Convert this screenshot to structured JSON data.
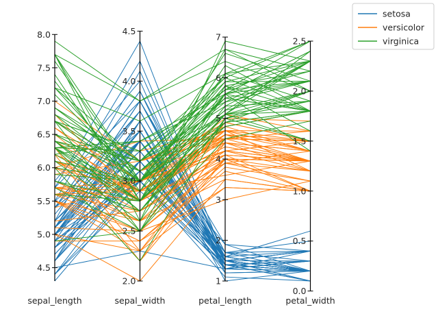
{
  "chart_data": {
    "type": "line",
    "subtype": "parallel-coordinates",
    "title": "",
    "axes": [
      {
        "name": "sepal_length",
        "range": [
          4.3,
          7.9
        ],
        "ticks": [
          "4.5",
          "5.0",
          "5.5",
          "6.0",
          "6.5",
          "7.0",
          "7.5",
          "8.0"
        ],
        "tick_values": [
          4.5,
          5.0,
          5.5,
          6.0,
          6.5,
          7.0,
          7.5,
          8.0
        ]
      },
      {
        "name": "sepal_width",
        "range": [
          2.0,
          4.4
        ],
        "ticks": [
          "2.0",
          "2.5",
          "3.0",
          "3.5",
          "4.0",
          "4.5"
        ],
        "tick_values": [
          2.0,
          2.5,
          3.0,
          3.5,
          4.0,
          4.5
        ]
      },
      {
        "name": "petal_length",
        "range": [
          1.0,
          6.9
        ],
        "ticks": [
          "1",
          "2",
          "3",
          "4",
          "5",
          "6",
          "7"
        ],
        "tick_values": [
          1,
          2,
          3,
          4,
          5,
          6,
          7
        ]
      },
      {
        "name": "petal_width",
        "range": [
          0.1,
          2.5
        ],
        "ticks": [
          "0.0",
          "0.5",
          "1.0",
          "1.5",
          "2.0",
          "2.5"
        ],
        "tick_values": [
          0.0,
          0.5,
          1.0,
          1.5,
          2.0,
          2.5
        ]
      }
    ],
    "legend": {
      "placement": "top-right, outside"
    },
    "grid": false,
    "colors": {
      "setosa": "#1f77b4",
      "versicolor": "#ff7f0e",
      "virginica": "#2ca02c",
      "axis": "#000000"
    },
    "series": [
      {
        "name": "setosa",
        "color": "#1f77b4",
        "values": [
          [
            5.1,
            3.5,
            1.4,
            0.2
          ],
          [
            4.9,
            3.0,
            1.4,
            0.2
          ],
          [
            4.7,
            3.2,
            1.3,
            0.2
          ],
          [
            4.6,
            3.1,
            1.5,
            0.2
          ],
          [
            5.0,
            3.6,
            1.4,
            0.2
          ],
          [
            5.4,
            3.9,
            1.7,
            0.4
          ],
          [
            4.6,
            3.4,
            1.4,
            0.3
          ],
          [
            5.0,
            3.4,
            1.5,
            0.2
          ],
          [
            4.4,
            2.9,
            1.4,
            0.2
          ],
          [
            4.9,
            3.1,
            1.5,
            0.1
          ],
          [
            5.4,
            3.7,
            1.5,
            0.2
          ],
          [
            4.8,
            3.4,
            1.6,
            0.2
          ],
          [
            4.8,
            3.0,
            1.4,
            0.1
          ],
          [
            4.3,
            3.0,
            1.1,
            0.1
          ],
          [
            5.8,
            4.0,
            1.2,
            0.2
          ],
          [
            5.7,
            4.4,
            1.5,
            0.4
          ],
          [
            5.4,
            3.9,
            1.3,
            0.4
          ],
          [
            5.1,
            3.5,
            1.4,
            0.3
          ],
          [
            5.7,
            3.8,
            1.7,
            0.3
          ],
          [
            5.1,
            3.8,
            1.5,
            0.3
          ],
          [
            5.4,
            3.4,
            1.7,
            0.2
          ],
          [
            5.1,
            3.7,
            1.5,
            0.4
          ],
          [
            4.6,
            3.6,
            1.0,
            0.2
          ],
          [
            5.1,
            3.3,
            1.7,
            0.5
          ],
          [
            4.8,
            3.4,
            1.9,
            0.2
          ],
          [
            5.0,
            3.0,
            1.6,
            0.2
          ],
          [
            5.0,
            3.4,
            1.6,
            0.4
          ],
          [
            5.2,
            3.5,
            1.5,
            0.2
          ],
          [
            5.2,
            3.4,
            1.4,
            0.2
          ],
          [
            4.7,
            3.2,
            1.6,
            0.2
          ],
          [
            4.8,
            3.1,
            1.6,
            0.2
          ],
          [
            5.4,
            3.4,
            1.5,
            0.4
          ],
          [
            5.2,
            4.1,
            1.5,
            0.1
          ],
          [
            5.5,
            4.2,
            1.4,
            0.2
          ],
          [
            4.9,
            3.1,
            1.5,
            0.2
          ],
          [
            5.0,
            3.2,
            1.2,
            0.2
          ],
          [
            5.5,
            3.5,
            1.3,
            0.2
          ],
          [
            4.9,
            3.6,
            1.4,
            0.1
          ],
          [
            4.4,
            3.0,
            1.3,
            0.2
          ],
          [
            5.1,
            3.4,
            1.5,
            0.2
          ],
          [
            5.0,
            3.5,
            1.3,
            0.3
          ],
          [
            4.5,
            2.3,
            1.3,
            0.3
          ],
          [
            4.4,
            3.2,
            1.3,
            0.2
          ],
          [
            5.0,
            3.5,
            1.6,
            0.6
          ],
          [
            5.1,
            3.8,
            1.9,
            0.4
          ],
          [
            4.8,
            3.0,
            1.4,
            0.3
          ],
          [
            5.1,
            3.8,
            1.6,
            0.2
          ],
          [
            4.6,
            3.2,
            1.4,
            0.2
          ],
          [
            5.3,
            3.7,
            1.5,
            0.2
          ],
          [
            5.0,
            3.3,
            1.4,
            0.2
          ]
        ]
      },
      {
        "name": "versicolor",
        "color": "#ff7f0e",
        "values": [
          [
            7.0,
            3.2,
            4.7,
            1.4
          ],
          [
            6.4,
            3.2,
            4.5,
            1.5
          ],
          [
            6.9,
            3.1,
            4.9,
            1.5
          ],
          [
            5.5,
            2.3,
            4.0,
            1.3
          ],
          [
            6.5,
            2.8,
            4.6,
            1.5
          ],
          [
            5.7,
            2.8,
            4.5,
            1.3
          ],
          [
            6.3,
            3.3,
            4.7,
            1.6
          ],
          [
            4.9,
            2.4,
            3.3,
            1.0
          ],
          [
            6.6,
            2.9,
            4.6,
            1.3
          ],
          [
            5.2,
            2.7,
            3.9,
            1.4
          ],
          [
            5.0,
            2.0,
            3.5,
            1.0
          ],
          [
            5.9,
            3.0,
            4.2,
            1.5
          ],
          [
            6.0,
            2.2,
            4.0,
            1.0
          ],
          [
            6.1,
            2.9,
            4.7,
            1.4
          ],
          [
            5.6,
            2.9,
            3.6,
            1.3
          ],
          [
            6.7,
            3.1,
            4.4,
            1.4
          ],
          [
            5.6,
            3.0,
            4.5,
            1.5
          ],
          [
            5.8,
            2.7,
            4.1,
            1.0
          ],
          [
            6.2,
            2.2,
            4.5,
            1.5
          ],
          [
            5.6,
            2.5,
            3.9,
            1.1
          ],
          [
            5.9,
            3.2,
            4.8,
            1.8
          ],
          [
            6.1,
            2.8,
            4.0,
            1.3
          ],
          [
            6.3,
            2.5,
            4.9,
            1.5
          ],
          [
            6.1,
            2.8,
            4.7,
            1.2
          ],
          [
            6.4,
            2.9,
            4.3,
            1.3
          ],
          [
            6.6,
            3.0,
            4.4,
            1.4
          ],
          [
            6.8,
            2.8,
            4.8,
            1.4
          ],
          [
            6.7,
            3.0,
            5.0,
            1.7
          ],
          [
            6.0,
            2.9,
            4.5,
            1.5
          ],
          [
            5.7,
            2.6,
            3.5,
            1.0
          ],
          [
            5.5,
            2.4,
            3.8,
            1.1
          ],
          [
            5.5,
            2.4,
            3.7,
            1.0
          ],
          [
            5.8,
            2.7,
            3.9,
            1.2
          ],
          [
            6.0,
            2.7,
            5.1,
            1.6
          ],
          [
            5.4,
            3.0,
            4.5,
            1.5
          ],
          [
            6.0,
            3.4,
            4.5,
            1.6
          ],
          [
            6.7,
            3.1,
            4.7,
            1.5
          ],
          [
            6.3,
            2.3,
            4.4,
            1.3
          ],
          [
            5.6,
            3.0,
            4.1,
            1.3
          ],
          [
            5.5,
            2.5,
            4.0,
            1.3
          ],
          [
            5.5,
            2.6,
            4.4,
            1.2
          ],
          [
            6.1,
            3.0,
            4.6,
            1.4
          ],
          [
            5.8,
            2.6,
            4.0,
            1.2
          ],
          [
            5.0,
            2.3,
            3.3,
            1.0
          ],
          [
            5.6,
            2.7,
            4.2,
            1.3
          ],
          [
            5.7,
            3.0,
            4.2,
            1.2
          ],
          [
            5.7,
            2.9,
            4.2,
            1.3
          ],
          [
            6.2,
            2.9,
            4.3,
            1.3
          ],
          [
            5.1,
            2.5,
            3.0,
            1.1
          ],
          [
            5.7,
            2.8,
            4.1,
            1.3
          ]
        ]
      },
      {
        "name": "virginica",
        "color": "#2ca02c",
        "values": [
          [
            6.3,
            3.3,
            6.0,
            2.5
          ],
          [
            5.8,
            2.7,
            5.1,
            1.9
          ],
          [
            7.1,
            3.0,
            5.9,
            2.1
          ],
          [
            6.3,
            2.9,
            5.6,
            1.8
          ],
          [
            6.5,
            3.0,
            5.8,
            2.2
          ],
          [
            7.6,
            3.0,
            6.6,
            2.1
          ],
          [
            4.9,
            2.5,
            4.5,
            1.7
          ],
          [
            7.3,
            2.9,
            6.3,
            1.8
          ],
          [
            6.7,
            2.5,
            5.8,
            1.8
          ],
          [
            7.2,
            3.6,
            6.1,
            2.5
          ],
          [
            6.5,
            3.2,
            5.1,
            2.0
          ],
          [
            6.4,
            2.7,
            5.3,
            1.9
          ],
          [
            6.8,
            3.0,
            5.5,
            2.1
          ],
          [
            5.7,
            2.5,
            5.0,
            2.0
          ],
          [
            5.8,
            2.8,
            5.1,
            2.4
          ],
          [
            6.4,
            3.2,
            5.3,
            2.3
          ],
          [
            6.5,
            3.0,
            5.5,
            1.8
          ],
          [
            7.7,
            3.8,
            6.7,
            2.2
          ],
          [
            7.7,
            2.6,
            6.9,
            2.3
          ],
          [
            6.0,
            2.2,
            5.0,
            1.5
          ],
          [
            6.9,
            3.2,
            5.7,
            2.3
          ],
          [
            5.6,
            2.8,
            4.9,
            2.0
          ],
          [
            7.7,
            2.8,
            6.7,
            2.0
          ],
          [
            6.3,
            2.7,
            4.9,
            1.8
          ],
          [
            6.7,
            3.3,
            5.7,
            2.1
          ],
          [
            7.2,
            3.2,
            6.0,
            1.8
          ],
          [
            6.2,
            2.8,
            4.8,
            1.8
          ],
          [
            6.1,
            3.0,
            4.9,
            1.8
          ],
          [
            6.4,
            2.8,
            5.6,
            2.1
          ],
          [
            7.2,
            3.0,
            5.8,
            1.6
          ],
          [
            7.4,
            2.8,
            6.1,
            1.9
          ],
          [
            7.9,
            3.8,
            6.4,
            2.0
          ],
          [
            6.4,
            2.8,
            5.6,
            2.2
          ],
          [
            6.3,
            2.8,
            5.1,
            1.5
          ],
          [
            6.1,
            2.6,
            5.6,
            1.4
          ],
          [
            7.7,
            3.0,
            6.1,
            2.3
          ],
          [
            6.3,
            3.4,
            5.6,
            2.4
          ],
          [
            6.4,
            3.1,
            5.5,
            1.8
          ],
          [
            6.0,
            3.0,
            4.8,
            1.8
          ],
          [
            6.9,
            3.1,
            5.4,
            2.1
          ],
          [
            6.7,
            3.1,
            5.6,
            2.4
          ],
          [
            6.9,
            3.1,
            5.1,
            2.3
          ],
          [
            5.8,
            2.7,
            5.1,
            1.9
          ],
          [
            6.8,
            3.2,
            5.9,
            2.3
          ],
          [
            6.7,
            3.3,
            5.7,
            2.5
          ],
          [
            6.7,
            3.0,
            5.2,
            2.3
          ],
          [
            6.3,
            2.5,
            5.0,
            1.9
          ],
          [
            6.5,
            3.0,
            5.2,
            2.0
          ],
          [
            6.2,
            3.4,
            5.4,
            2.3
          ],
          [
            5.9,
            3.0,
            5.1,
            1.8
          ]
        ]
      }
    ]
  }
}
